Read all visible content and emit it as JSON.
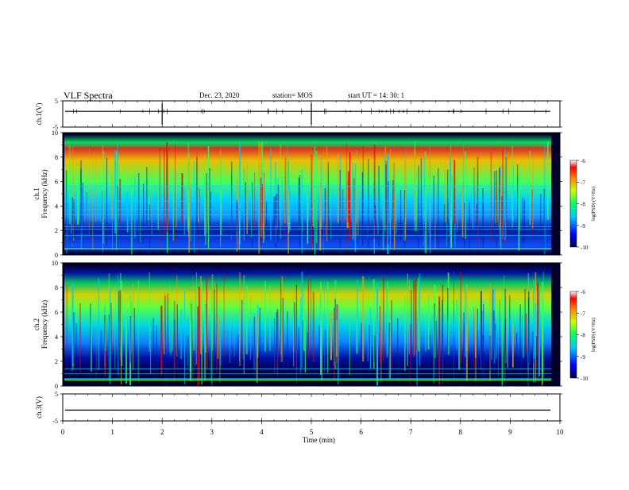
{
  "header": {
    "title": "VLF Spectra",
    "date": "Dec. 23, 2020",
    "station": "station= MOS",
    "start": "start  UT =   14: 30: 1"
  },
  "chart_data": [
    {
      "type": "line",
      "panel": "ch1-waveform",
      "ylabel": "ch.1(V)",
      "ylim": [
        -5,
        5
      ],
      "yticks": [
        "5",
        "-5"
      ],
      "x": [
        0,
        10
      ],
      "series": [
        {
          "values": [
            1,
            1
          ]
        }
      ]
    },
    {
      "type": "heatmap",
      "panel": "ch1-spectrogram",
      "ylabel": "ch.1\nFrequency (kHz)",
      "ylim": [
        0,
        10
      ],
      "yticks": [
        "0",
        "2",
        "4",
        "6",
        "8",
        "10"
      ],
      "xlim": [
        0,
        10
      ],
      "colorbar": {
        "label": "log(PSD) (V²/Hz)",
        "ticks": [
          "-6",
          "-7",
          "-8",
          "-9",
          "-10"
        ],
        "range": [
          -10,
          -6
        ]
      }
    },
    {
      "type": "heatmap",
      "panel": "ch2-spectrogram",
      "ylabel": "ch.2\nFrequency (kHz)",
      "ylim": [
        0,
        10
      ],
      "yticks": [
        "0",
        "2",
        "4",
        "6",
        "8",
        "10"
      ],
      "xlim": [
        0,
        10
      ],
      "colorbar": {
        "label": "log(PSD) (V²/Hz)",
        "ticks": [
          "-6",
          "-7",
          "-8",
          "-9",
          "-10"
        ],
        "range": [
          -10,
          -6
        ]
      }
    },
    {
      "type": "line",
      "panel": "ch3-waveform",
      "ylabel": "ch.3(V)",
      "ylim": [
        -5,
        5
      ],
      "yticks": [
        "5",
        "-5"
      ],
      "x": [
        0,
        10
      ],
      "series": [
        {
          "values": [
            -1,
            -1
          ]
        }
      ]
    }
  ],
  "x_axis": {
    "label": "Time  (min)",
    "ticks": [
      "0",
      "1",
      "2",
      "3",
      "4",
      "5",
      "6",
      "7",
      "8",
      "9",
      "10"
    ],
    "range": [
      0,
      10
    ]
  },
  "colors": {
    "spectro_high": "#e60000",
    "spectro_mid": "#22e622",
    "spectro_low": "#0033cc",
    "spectro_bg": "#000028"
  }
}
